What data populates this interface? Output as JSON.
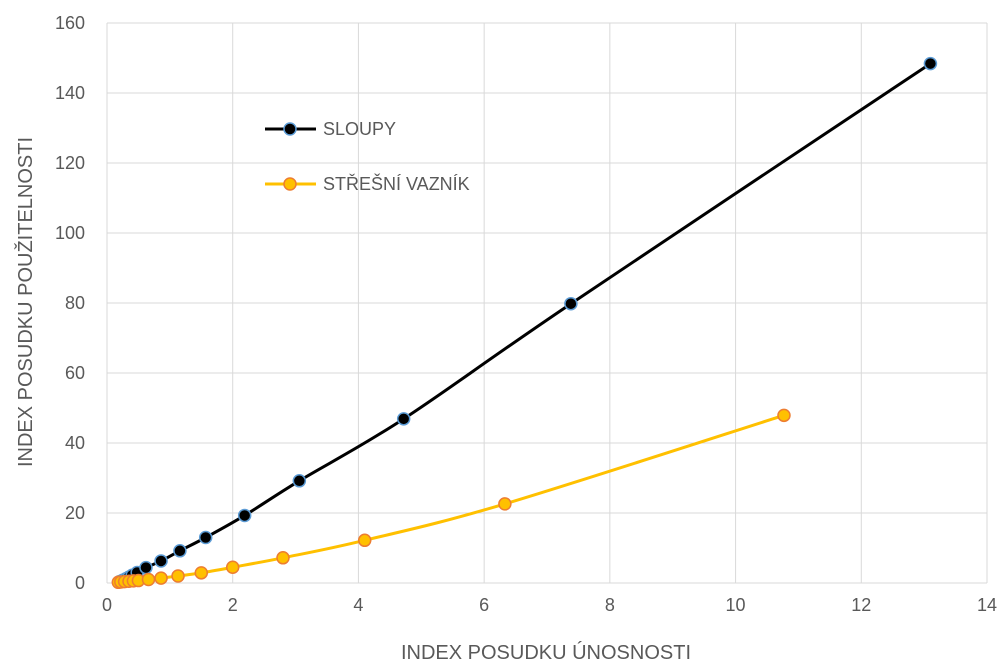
{
  "chart_data": {
    "type": "scatter",
    "xlabel": "INDEX POSUDKU ÚNOSNOSTI",
    "ylabel": "INDEX POSUDKU POUŽITELNOSTI",
    "xlim": [
      0,
      14
    ],
    "ylim": [
      0,
      160
    ],
    "x_ticks": [
      "0",
      "2",
      "4",
      "6",
      "8",
      "10",
      "12",
      "14"
    ],
    "y_ticks": [
      "0",
      "20",
      "40",
      "60",
      "80",
      "100",
      "120",
      "140",
      "160"
    ],
    "grid": true,
    "legend_position": "upper-left (inside plot)",
    "series": [
      {
        "name": "SLOUPY",
        "line_color": "#000000",
        "marker_color": "#000000",
        "marker_edge_color": "#5B9BD5",
        "x": [
          0.2,
          0.25,
          0.3,
          0.35,
          0.4,
          0.48,
          0.62,
          0.86,
          1.16,
          1.57,
          2.19,
          3.06,
          4.72,
          7.38,
          13.1
        ],
        "y": [
          0.4,
          0.8,
          1.2,
          1.7,
          2.2,
          3.0,
          4.4,
          6.3,
          9.2,
          13.0,
          19.3,
          29.2,
          46.9,
          79.8,
          148.4
        ]
      },
      {
        "name": "STŘEŠNÍ VAZNÍK",
        "line_color": "#FFC000",
        "marker_color": "#FFC000",
        "marker_edge_color": "#ED7D31",
        "x": [
          0.18,
          0.22,
          0.28,
          0.35,
          0.42,
          0.5,
          0.66,
          0.86,
          1.13,
          1.5,
          2.0,
          2.8,
          4.1,
          6.33,
          10.77
        ],
        "y": [
          0.2,
          0.3,
          0.4,
          0.5,
          0.6,
          0.7,
          1.0,
          1.4,
          2.0,
          2.9,
          4.5,
          7.2,
          12.2,
          22.6,
          47.9
        ]
      }
    ]
  }
}
